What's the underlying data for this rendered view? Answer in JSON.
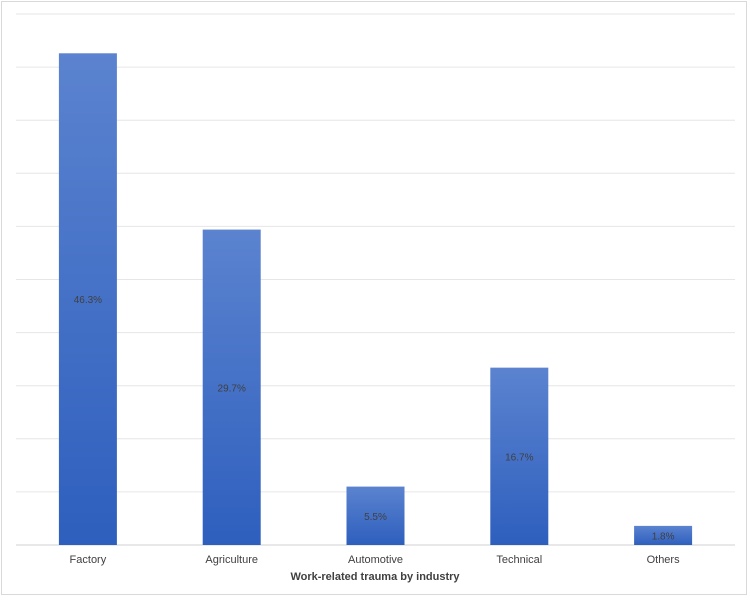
{
  "chart_data": {
    "type": "bar",
    "categories": [
      "Factory",
      "Agriculture",
      "Automotive",
      "Technical",
      "Others"
    ],
    "values": [
      46.3,
      29.7,
      5.5,
      16.7,
      1.8
    ],
    "data_labels": [
      "46.3%",
      "29.7%",
      "5.5%",
      "16.7%",
      "1.8%"
    ],
    "xlabel": "Work-related trauma by industry",
    "ylabel": "",
    "ylim": [
      0,
      50
    ],
    "grid": true,
    "legend": "none",
    "colors": {
      "bar_top": "#5b83cf",
      "bar_bottom": "#2e5fbe",
      "grid": "#e6e6e6"
    }
  }
}
